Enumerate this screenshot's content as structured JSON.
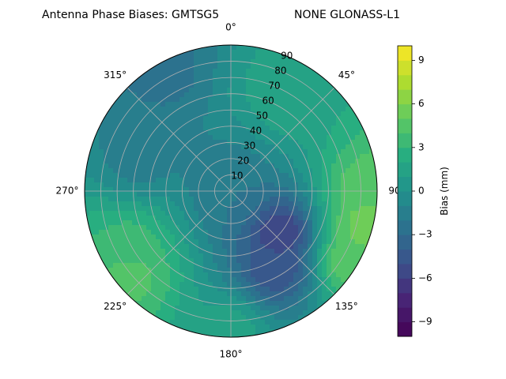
{
  "chart_data": {
    "type": "heatmap",
    "projection": "polar",
    "title_left": "Antenna Phase Biases: GMTSG5",
    "title_right": "NONE GLONASS-L1",
    "azimuth_ticks": [
      {
        "deg": 0,
        "label": "0°"
      },
      {
        "deg": 45,
        "label": "45°"
      },
      {
        "deg": 90,
        "label": "90"
      },
      {
        "deg": 135,
        "label": "135°"
      },
      {
        "deg": 180,
        "label": "180°"
      },
      {
        "deg": 225,
        "label": "225°"
      },
      {
        "deg": 270,
        "label": "270°"
      },
      {
        "deg": 315,
        "label": "315°"
      }
    ],
    "radial_ticks": [
      {
        "value": 10,
        "label": "10"
      },
      {
        "value": 20,
        "label": "20"
      },
      {
        "value": 30,
        "label": "30"
      },
      {
        "value": 40,
        "label": "40"
      },
      {
        "value": 50,
        "label": "50"
      },
      {
        "value": 60,
        "label": "60"
      },
      {
        "value": 70,
        "label": "70"
      },
      {
        "value": 80,
        "label": "80"
      },
      {
        "value": 90,
        "label": "90"
      }
    ],
    "rlim": [
      0,
      90
    ],
    "colorbar": {
      "label": "Bias (mm)",
      "vmin": -10,
      "vmax": 10,
      "ticks": [
        {
          "value": -9,
          "label": "−9"
        },
        {
          "value": -6,
          "label": "−6"
        },
        {
          "value": -3,
          "label": "−3"
        },
        {
          "value": 0,
          "label": "0"
        },
        {
          "value": 3,
          "label": "3"
        },
        {
          "value": 6,
          "label": "6"
        },
        {
          "value": 9,
          "label": "9"
        }
      ],
      "levels": 20,
      "colormap": "viridis"
    },
    "bias_field": [
      {
        "az": 0,
        "r": 0,
        "bias": -2.0
      },
      {
        "az": 130,
        "r": 40,
        "bias": -6.0
      },
      {
        "az": 150,
        "r": 55,
        "bias": -5.0
      },
      {
        "az": 90,
        "r": 85,
        "bias": 5.0
      },
      {
        "az": 105,
        "r": 85,
        "bias": 5.5
      },
      {
        "az": 120,
        "r": 85,
        "bias": 5.0
      },
      {
        "az": 230,
        "r": 80,
        "bias": 4.5
      },
      {
        "az": 240,
        "r": 70,
        "bias": 3.5
      },
      {
        "az": 30,
        "r": 70,
        "bias": 2.0
      },
      {
        "az": 330,
        "r": 85,
        "bias": -2.5
      },
      {
        "az": 290,
        "r": 60,
        "bias": -1.5
      },
      {
        "az": 180,
        "r": 85,
        "bias": 1.5
      }
    ],
    "grid": true
  }
}
